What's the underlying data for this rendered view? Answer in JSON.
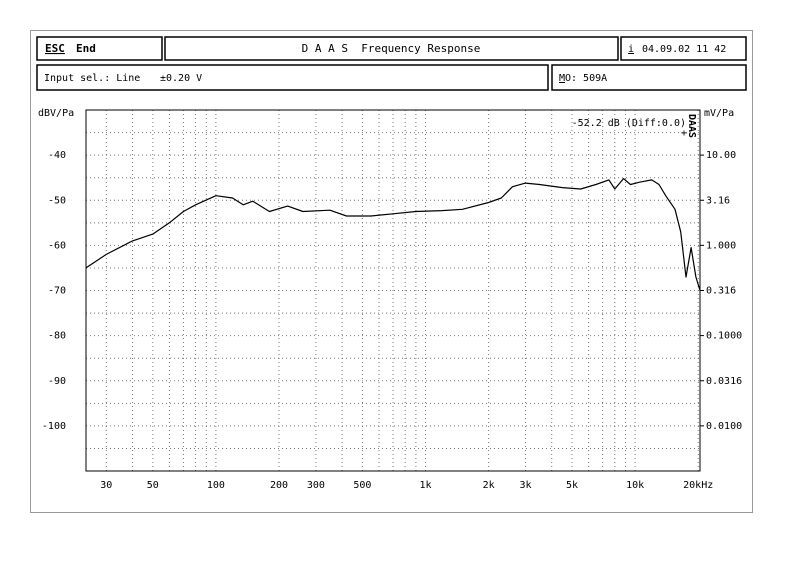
{
  "header": {
    "esc": "ESC",
    "end": "End",
    "title": "D A A S  Frequency Response",
    "info": "i",
    "date": "04.09.02 11 42"
  },
  "status": {
    "input": "Input sel.: Line",
    "range": "±0.20 V",
    "mo_key": "M",
    "mo": "O: 509A"
  },
  "chart_data": {
    "type": "line",
    "log_x": true,
    "y2_log": true,
    "grid": true,
    "color": "#000000",
    "y_label": "dBV/Pa",
    "y2_label": "mV/Pa",
    "annotation": "-52.2 dB (Diff:0.0)",
    "watermark": "DAAS",
    "x": [
      24,
      30,
      40,
      50,
      60,
      70,
      80,
      100,
      120,
      135,
      150,
      180,
      220,
      260,
      350,
      420,
      550,
      700,
      900,
      1200,
      1500,
      2000,
      2300,
      2600,
      3000,
      3500,
      4500,
      5500,
      6500,
      7500,
      8000,
      8800,
      9500,
      10500,
      12000,
      13000,
      14000,
      15500,
      16500,
      17500,
      18500,
      19500,
      20400
    ],
    "values": [
      -65,
      -62,
      -59,
      -57.5,
      -55,
      -52.5,
      -51,
      -49,
      -49.5,
      -51,
      -50.2,
      -52.5,
      -51.3,
      -52.5,
      -52.2,
      -53.5,
      -53.5,
      -53,
      -52.5,
      -52.3,
      -52,
      -50.5,
      -49.5,
      -47,
      -46.2,
      -46.5,
      -47.2,
      -47.5,
      -46.5,
      -45.5,
      -47.5,
      -45.2,
      -46.5,
      -46,
      -45.5,
      -46.5,
      -49,
      -52,
      -57,
      -67,
      -60.5,
      -67,
      -70
    ],
    "xlim": [
      24,
      20400
    ],
    "xticks": [
      30,
      50,
      100,
      200,
      300,
      500,
      {
        "value": 1000,
        "label": "1k"
      },
      {
        "value": 2000,
        "label": "2k"
      },
      {
        "value": 3000,
        "label": "3k"
      },
      {
        "value": 5000,
        "label": "5k"
      },
      {
        "value": 10000,
        "label": "10k"
      },
      {
        "value": 20000,
        "label": "20kHz"
      }
    ],
    "xminor": [
      40,
      60,
      70,
      80,
      90,
      400,
      600,
      700,
      800,
      900,
      4000,
      6000,
      7000,
      8000,
      9000
    ],
    "ylim": [
      -110,
      -30
    ],
    "yticks": [
      -40,
      -50,
      -60,
      -70,
      -80,
      -90,
      -100
    ],
    "yminor": [
      -35,
      -45,
      -55,
      -65,
      -75,
      -85,
      -95,
      -105
    ],
    "y2lim": [
      0.00316,
      31.6
    ],
    "y2ticks": [
      {
        "value": 10,
        "label": "10.00"
      },
      3.16,
      {
        "value": 1,
        "label": "1.000"
      },
      0.316,
      {
        "value": 0.1,
        "label": "0.1000"
      },
      0.0316,
      {
        "value": 0.01,
        "label": "0.0100"
      }
    ]
  }
}
